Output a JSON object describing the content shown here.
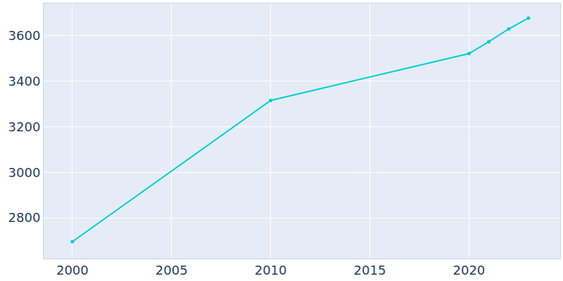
{
  "chart_data": {
    "type": "line",
    "x": [
      2000,
      2010,
      2020,
      2021,
      2022,
      2023
    ],
    "values": [
      2695,
      3316,
      3522,
      3574,
      3630,
      3678
    ],
    "color": "#00ced1",
    "marker": "circle",
    "line_style": "solid",
    "xlim": [
      1998.55,
      2024.6
    ],
    "xticks": [
      2000,
      2005,
      2010,
      2015,
      2020
    ],
    "ylim": [
      2621,
      3742
    ],
    "yticks": [
      2800,
      3000,
      3200,
      3400,
      3600
    ],
    "grid": true
  }
}
